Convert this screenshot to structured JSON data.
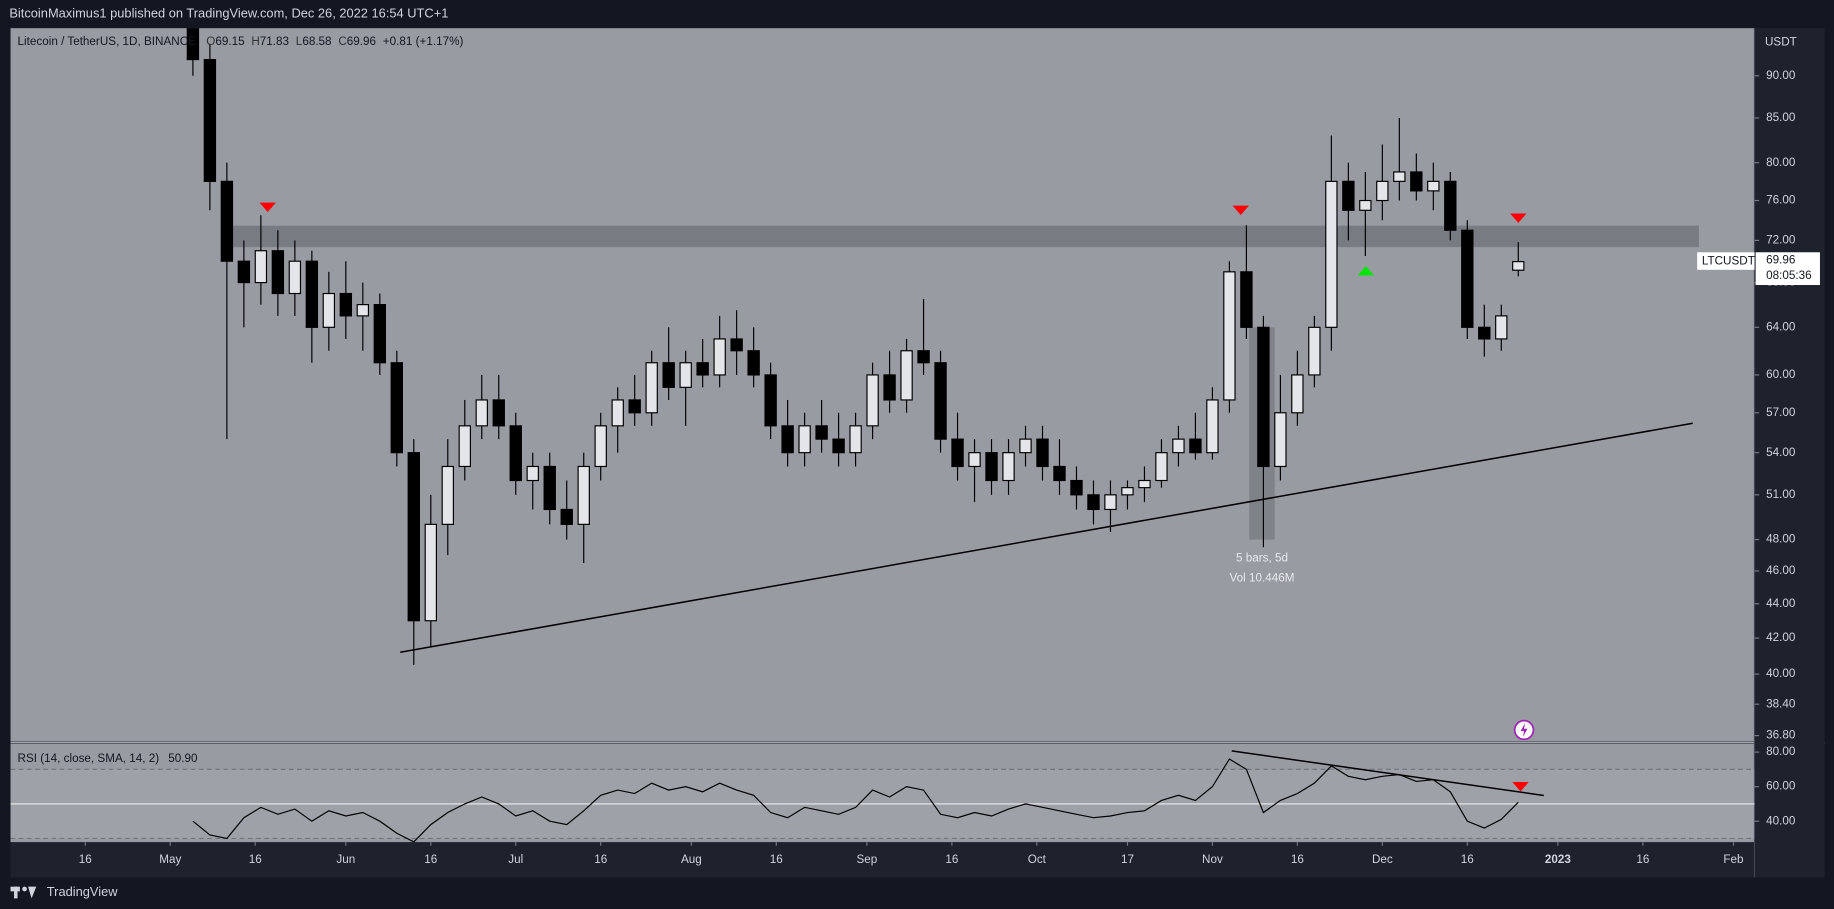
{
  "chart_data": {
    "type": "candlestick",
    "publisher_line": "BitcoinMaximus1 published on TradingView.com, Dec 26, 2022 16:54 UTC+1",
    "title": "Litecoin / TetherUS, 1D, BINANCE",
    "ohlc_letters": [
      "O",
      "H",
      "L",
      "C"
    ],
    "change_label": "+0.81 (+1.17%)",
    "currency": "USDT",
    "symbol": "LTCUSDT",
    "countdown": "08:05:36",
    "footer": "TradingView",
    "up_color": "#e4e5e8",
    "down_color": "#000000",
    "log_scale": true,
    "grid": false,
    "x": [
      19,
      22,
      25,
      28,
      31,
      34,
      37,
      40,
      43,
      46,
      49,
      52,
      55,
      58,
      61,
      64,
      67,
      70,
      73,
      76,
      79,
      82,
      85,
      88,
      91,
      94,
      97,
      100,
      103,
      106,
      109,
      112,
      115,
      118,
      121,
      124,
      127,
      130,
      133,
      136,
      139,
      142,
      145,
      148,
      151,
      154,
      157,
      160,
      163,
      166,
      169,
      172,
      175,
      178,
      181,
      184,
      187,
      190,
      193,
      196,
      199,
      202,
      205,
      208,
      211,
      214,
      217,
      220,
      223,
      226,
      229,
      232,
      235,
      238,
      241,
      244,
      247,
      250,
      253
    ],
    "open": [
      98,
      92,
      78,
      70,
      68,
      71,
      67,
      70,
      64,
      67,
      65,
      66,
      61,
      54,
      43,
      49,
      53,
      56,
      58,
      56,
      52,
      53,
      50,
      49,
      53,
      56,
      58,
      57,
      61,
      59,
      61,
      60,
      63,
      62,
      60,
      56,
      54,
      56,
      55,
      54,
      56,
      60,
      58,
      62,
      61,
      55,
      53,
      54,
      52,
      54,
      55,
      53,
      52,
      51,
      50,
      51,
      51.5,
      52,
      54,
      55,
      54,
      58,
      69,
      64,
      53,
      57,
      60,
      64,
      78,
      75,
      76,
      78,
      79,
      77,
      78,
      73,
      64,
      63,
      69.15
    ],
    "high": [
      99,
      94,
      80,
      72,
      74.5,
      73,
      72,
      71,
      69,
      70,
      68,
      67,
      62,
      55,
      51,
      55,
      58,
      60,
      60,
      57,
      54,
      54,
      52,
      54,
      57,
      59,
      60,
      62,
      64,
      62,
      63,
      65,
      65.5,
      64,
      61,
      58,
      57,
      58,
      57,
      57,
      61,
      62,
      63,
      66.5,
      62,
      57,
      55,
      55,
      55,
      56,
      56,
      55,
      53,
      52,
      52,
      52,
      53,
      55,
      56,
      57,
      59,
      70,
      73.5,
      65,
      60,
      62,
      65,
      83,
      80,
      79,
      82,
      85,
      81,
      80,
      79,
      74,
      66,
      66,
      71.83
    ],
    "low": [
      90,
      75,
      55,
      64,
      66,
      65,
      65,
      61,
      62,
      63,
      62,
      60,
      53,
      40.5,
      41.5,
      47,
      52,
      55,
      55,
      51,
      50,
      49,
      48,
      46.5,
      52,
      54,
      56,
      56,
      58,
      56,
      59,
      59,
      60,
      59,
      55,
      53,
      53,
      54,
      53,
      53,
      55,
      57,
      57,
      60,
      54,
      52,
      50.5,
      51,
      51,
      53,
      52,
      51,
      50,
      49,
      48.5,
      50,
      50.5,
      51.5,
      53,
      53.5,
      53.5,
      57,
      63,
      47.5,
      52,
      56,
      59,
      62,
      72,
      70.5,
      74,
      76,
      76,
      75,
      72,
      63,
      61.5,
      62,
      68.58
    ],
    "close": [
      92,
      78,
      70,
      68,
      71,
      67,
      70,
      64,
      67,
      65,
      66,
      61,
      54,
      43,
      49,
      53,
      56,
      58,
      56,
      52,
      53,
      50,
      49,
      53,
      56,
      58,
      57,
      61,
      59,
      61,
      60,
      63,
      62,
      60,
      56,
      54,
      56,
      55,
      54,
      56,
      60,
      58,
      62,
      61,
      55,
      53,
      54,
      52,
      54,
      55,
      53,
      52,
      51,
      50,
      51,
      51.5,
      52,
      54,
      55,
      54,
      58,
      69,
      64,
      53,
      57,
      60,
      64,
      78,
      75,
      76,
      78,
      79,
      77,
      78,
      73,
      64,
      63,
      65,
      69.96
    ],
    "xlim": [
      -13.2,
      294.7
    ],
    "xticks": [
      {
        "value": 0,
        "label": "16"
      },
      {
        "value": 15,
        "label": "May"
      },
      {
        "value": 30,
        "label": "16"
      },
      {
        "value": 46,
        "label": "Jun"
      },
      {
        "value": 61,
        "label": "16"
      },
      {
        "value": 76,
        "label": "Jul"
      },
      {
        "value": 91,
        "label": "16"
      },
      {
        "value": 107,
        "label": "Aug"
      },
      {
        "value": 122,
        "label": "16"
      },
      {
        "value": 138,
        "label": "Sep"
      },
      {
        "value": 153,
        "label": "16"
      },
      {
        "value": 168,
        "label": "Oct"
      },
      {
        "value": 184,
        "label": "17"
      },
      {
        "value": 199,
        "label": "Nov"
      },
      {
        "value": 214,
        "label": "16"
      },
      {
        "value": 229,
        "label": "Dec"
      },
      {
        "value": 244,
        "label": "16"
      },
      {
        "value": 260,
        "label": "2023"
      },
      {
        "value": 275,
        "label": "16"
      },
      {
        "value": 291,
        "label": "Feb"
      }
    ],
    "ylim": [
      36.5,
      96
    ],
    "yticks": [
      {
        "value": 90,
        "label": "90.00"
      },
      {
        "value": 85,
        "label": "85.00"
      },
      {
        "value": 80,
        "label": "80.00"
      },
      {
        "value": 76,
        "label": "76.00"
      },
      {
        "value": 72,
        "label": "72.00"
      },
      {
        "value": 68,
        "label": "68.00"
      },
      {
        "value": 64,
        "label": "64.00"
      },
      {
        "value": 60,
        "label": "60.00"
      },
      {
        "value": 57,
        "label": "57.00"
      },
      {
        "value": 54,
        "label": "54.00"
      },
      {
        "value": 51,
        "label": "51.00"
      },
      {
        "value": 48,
        "label": "48.00"
      },
      {
        "value": 46,
        "label": "46.00"
      },
      {
        "value": 44,
        "label": "44.00"
      },
      {
        "value": 42,
        "label": "42.00"
      },
      {
        "value": 40,
        "label": "40.00"
      },
      {
        "value": 38.4,
        "label": "38.40"
      },
      {
        "value": 36.8,
        "label": "36.80"
      }
    ],
    "zone": {
      "x": [
        24.2,
        284.8
      ],
      "y": [
        71.4,
        73.4
      ],
      "color": "#5d6068"
    },
    "trendlines": [
      {
        "x": [
          55.6,
          283.8
        ],
        "y": [
          41.2,
          56.2
        ],
        "color": "#000000"
      }
    ],
    "markers": [
      {
        "x": 32.2,
        "y": 75.3,
        "direction": "down",
        "color": "#ff0000"
      },
      {
        "x": 204,
        "y": 75,
        "direction": "down",
        "color": "#ff0000"
      },
      {
        "x": 253,
        "y": 74.2,
        "direction": "down",
        "color": "#ff0000"
      },
      {
        "x": 226.1,
        "y": 69.1,
        "direction": "up",
        "color": "#00e600"
      }
    ],
    "measure": {
      "x": [
        205.5,
        210
      ],
      "y": [
        48,
        64
      ],
      "label": "5 bars, 5d",
      "volume_label": "Vol 10.446M"
    },
    "indicator": {
      "name": "RSI (14, close, SMA, 14, 2)",
      "last": 50.9,
      "last_label": "50.90",
      "color": "#000000",
      "values": [
        40,
        32,
        30,
        42,
        48,
        44,
        47,
        40,
        46,
        43,
        45,
        40,
        33,
        28,
        38,
        45,
        50,
        54,
        50,
        43,
        46,
        40,
        38,
        46,
        55,
        58,
        56,
        62,
        58,
        60,
        57,
        62,
        58,
        55,
        45,
        42,
        48,
        46,
        44,
        48,
        58,
        54,
        60,
        58,
        44,
        42,
        45,
        43,
        47,
        50,
        48,
        46,
        44,
        42,
        43,
        45,
        46,
        52,
        55,
        52,
        60,
        76,
        70,
        45,
        52,
        56,
        62,
        72,
        66,
        64,
        66,
        67,
        63,
        64,
        57,
        40,
        36,
        41,
        50.9
      ],
      "ylim": [
        27.8,
        84.7
      ],
      "yticks": [
        {
          "value": 80,
          "label": "80.00"
        },
        {
          "value": 60,
          "label": "60.00"
        },
        {
          "value": 40,
          "label": "40.00"
        }
      ],
      "levels": [
        70,
        50,
        30
      ],
      "trendline": {
        "x": [
          202.4,
          257.5
        ],
        "y": [
          80.7,
          54.9
        ]
      },
      "marker": {
        "x": 253.4,
        "y": 60,
        "direction": "down",
        "color": "#ff0000"
      }
    }
  }
}
